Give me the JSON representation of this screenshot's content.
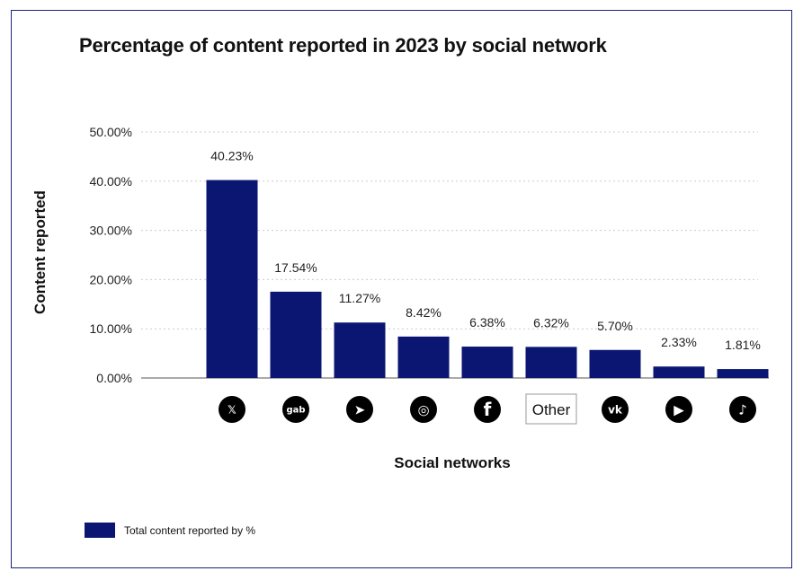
{
  "chart_data": {
    "type": "bar",
    "title": "Percentage of content reported in 2023 by social network",
    "xlabel": "Social networks",
    "ylabel": "Content reported",
    "ylim": [
      0,
      50
    ],
    "yticks": [
      "0.00%",
      "10.00%",
      "20.00%",
      "30.00%",
      "40.00%",
      "50.00%"
    ],
    "grid": true,
    "categories": [
      {
        "icon": "x-icon",
        "glyph": "𝕏"
      },
      {
        "icon": "gab-icon",
        "glyph": "gab"
      },
      {
        "icon": "telegram-icon",
        "glyph": "➤"
      },
      {
        "icon": "instagram-icon",
        "glyph": "◎"
      },
      {
        "icon": "facebook-icon",
        "glyph": "f"
      },
      {
        "label": "Other"
      },
      {
        "icon": "vk-icon",
        "glyph": "vk"
      },
      {
        "icon": "youtube-icon",
        "glyph": "▶"
      },
      {
        "icon": "tiktok-icon",
        "glyph": "♪"
      }
    ],
    "values": [
      40.23,
      17.54,
      11.27,
      8.42,
      6.38,
      6.32,
      5.7,
      2.33,
      1.81
    ],
    "data_labels": [
      "40.23%",
      "17.54%",
      "11.27%",
      "8.42%",
      "6.38%",
      "6.32%",
      "5.70%",
      "2.33%",
      "1.81%"
    ],
    "legend": {
      "label": "Total content reported by %",
      "position": "bottom-left"
    },
    "bar_color": "#0b1673"
  }
}
